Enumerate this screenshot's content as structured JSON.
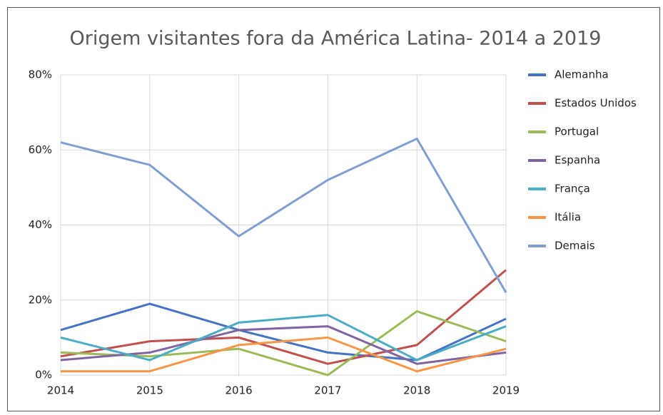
{
  "chart_data": {
    "type": "line",
    "title": "Origem visitantes fora da América Latina- 2014 a 2019",
    "categories": [
      "2014",
      "2015",
      "2016",
      "2017",
      "2018",
      "2019"
    ],
    "series": [
      {
        "name": "Alemanha",
        "color": "#4472c4",
        "values": [
          12,
          19,
          12,
          6,
          4,
          15
        ]
      },
      {
        "name": "Estados Unidos",
        "color": "#c0504d",
        "values": [
          5,
          9,
          10,
          3,
          8,
          28
        ]
      },
      {
        "name": "Portugal",
        "color": "#9bbb59",
        "values": [
          6,
          5,
          7,
          0,
          17,
          9
        ]
      },
      {
        "name": "Espanha",
        "color": "#8064a2",
        "values": [
          4,
          6,
          12,
          13,
          3,
          6
        ]
      },
      {
        "name": "França",
        "color": "#4bacc6",
        "values": [
          10,
          4,
          14,
          16,
          4,
          13
        ]
      },
      {
        "name": "Itália",
        "color": "#f79646",
        "values": [
          1,
          1,
          8,
          10,
          1,
          7
        ]
      },
      {
        "name": "Demais",
        "color": "#7f9fd0",
        "values": [
          62,
          56,
          37,
          52,
          63,
          22
        ]
      }
    ],
    "ylim": [
      0,
      80
    ],
    "yticks": [
      {
        "value": 0,
        "label": "0%"
      },
      {
        "value": 20,
        "label": "20%"
      },
      {
        "value": 40,
        "label": "40%"
      },
      {
        "value": 60,
        "label": "60%"
      },
      {
        "value": 80,
        "label": "80%"
      }
    ],
    "grid": true,
    "legend": "right"
  }
}
